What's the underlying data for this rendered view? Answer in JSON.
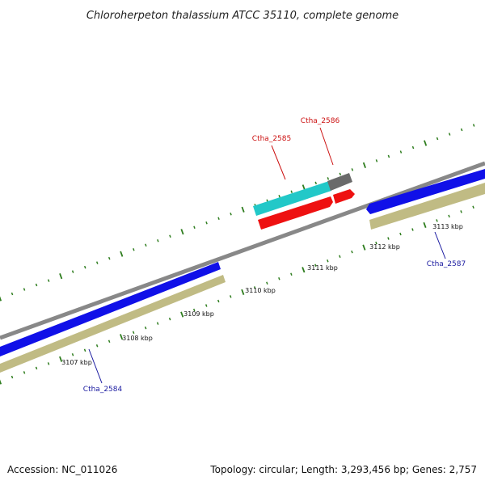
{
  "title": "Chloroherpeton thalassium ATCC 35110, complete genome",
  "footer": {
    "accession": "Accession: NC_011026",
    "summary": "Topology: circular; Length: 3,293,456 bp; Genes: 2,757"
  },
  "colors": {
    "backbone": "#888888",
    "tick": "#2e7d1e",
    "blue_gene": "#1010e8",
    "olive_gene": "#c0bb84",
    "cyan_gene": "#22c8c8",
    "red_gene": "#ee1111",
    "gray_gene": "#6a6a6a",
    "label_blue": "#1a1aa0",
    "label_red": "#cc1111"
  },
  "scale": {
    "tick_labels": [
      "3107 kbp",
      "3108 kbp",
      "3109 kbp",
      "3110 kbp",
      "3111 kbp",
      "3112 kbp",
      "3113 kbp"
    ]
  },
  "gene_labels": [
    {
      "name": "Ctha_2584",
      "color": "label_blue"
    },
    {
      "name": "Ctha_2585",
      "color": "label_red"
    },
    {
      "name": "Ctha_2586",
      "color": "label_red"
    },
    {
      "name": "Ctha_2587",
      "color": "label_blue"
    }
  ]
}
